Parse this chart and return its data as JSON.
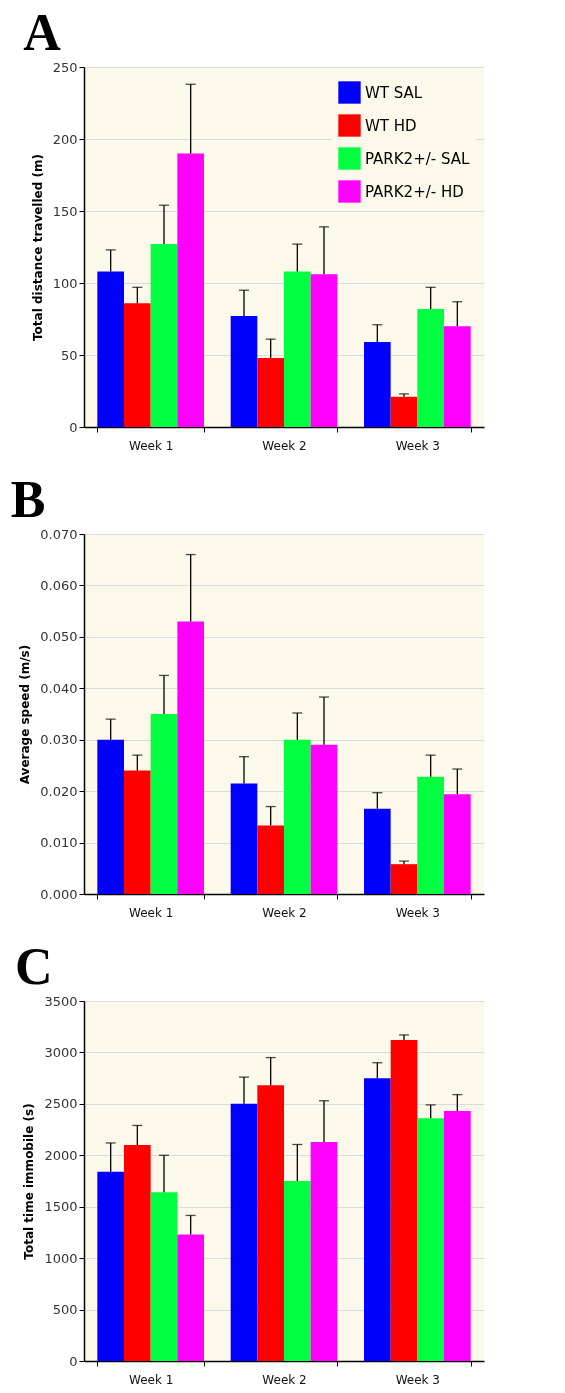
{
  "chart_data": [
    {
      "type": "bar",
      "title": "A",
      "ylabel": "Total distance travelled (m)",
      "categories": [
        "Week 1",
        "Week 2",
        "Week 3"
      ],
      "ylim": [
        0,
        250
      ],
      "yticks": [
        0,
        50,
        100,
        150,
        200,
        250
      ],
      "grid": "y",
      "legend": "top right",
      "series": [
        {
          "name": "WT SAL",
          "color": "#0000ff",
          "values": [
            108,
            77,
            59
          ],
          "errors": [
            [
              108,
              123
            ],
            [
              77,
              95
            ],
            [
              59,
              71
            ]
          ]
        },
        {
          "name": "WT HD",
          "color": "#ff0000",
          "values": [
            86,
            48,
            21
          ],
          "errors": [
            [
              86,
              97
            ],
            [
              48,
              61
            ],
            [
              21,
              23
            ]
          ]
        },
        {
          "name": "PARK2+/- SAL",
          "color": "#00ff40",
          "values": [
            127,
            108,
            82
          ],
          "errors": [
            [
              127,
              154
            ],
            [
              108,
              127
            ],
            [
              82,
              97
            ]
          ]
        },
        {
          "name": "PARK2+/- HD",
          "color": "#ff00ff",
          "values": [
            190,
            106,
            70
          ],
          "errors": [
            [
              190,
              238
            ],
            [
              106,
              139
            ],
            [
              70,
              87
            ]
          ]
        }
      ]
    },
    {
      "type": "bar",
      "title": "B",
      "ylabel": "Average speed (m/s)",
      "categories": [
        "Week 1",
        "Week 2",
        "Week 3"
      ],
      "ylim": [
        0,
        0.07
      ],
      "yticks": [
        {
          "value": 0,
          "label": "0.000"
        },
        {
          "value": 0.01,
          "label": "0.010"
        },
        {
          "value": 0.02,
          "label": "0.020"
        },
        {
          "value": 0.03,
          "label": "0.030"
        },
        {
          "value": 0.04,
          "label": "0.040"
        },
        {
          "value": 0.05,
          "label": "0.050"
        },
        {
          "value": 0.06,
          "label": "0.060"
        },
        {
          "value": 0.07,
          "label": "0.070"
        }
      ],
      "grid": "y",
      "series": [
        {
          "color": "#0000ff",
          "values": [
            0.03,
            0.0215,
            0.0166
          ],
          "errors": [
            [
              0.03,
              0.034
            ],
            [
              0.0215,
              0.0267
            ],
            [
              0.0166,
              0.0197
            ]
          ]
        },
        {
          "color": "#ff0000",
          "values": [
            0.024,
            0.0133,
            0.0058
          ],
          "errors": [
            [
              0.024,
              0.027
            ],
            [
              0.0133,
              0.017
            ],
            [
              0.0058,
              0.0064
            ]
          ]
        },
        {
          "color": "#00ff40",
          "values": [
            0.035,
            0.03,
            0.0228
          ],
          "errors": [
            [
              0.035,
              0.0425
            ],
            [
              0.03,
              0.0352
            ],
            [
              0.0228,
              0.027
            ]
          ]
        },
        {
          "color": "#ff00ff",
          "values": [
            0.053,
            0.029,
            0.0194
          ],
          "errors": [
            [
              0.053,
              0.066
            ],
            [
              0.029,
              0.0383
            ],
            [
              0.0194,
              0.0243
            ]
          ]
        }
      ]
    },
    {
      "type": "bar",
      "title": "C",
      "ylabel": "Total time immobile (s)",
      "categories": [
        "Week 1",
        "Week 2",
        "Week 3"
      ],
      "ylim": [
        0,
        3500
      ],
      "yticks": [
        0,
        500,
        1000,
        1500,
        2000,
        2500,
        3000,
        3500
      ],
      "grid": "y",
      "series": [
        {
          "color": "#0000ff",
          "values": [
            1840,
            2500,
            2750
          ],
          "errors": [
            [
              1840,
              2120
            ],
            [
              2500,
              2760
            ],
            [
              2750,
              2900
            ]
          ]
        },
        {
          "color": "#ff0000",
          "values": [
            2100,
            2680,
            3120
          ],
          "errors": [
            [
              2100,
              2290
            ],
            [
              2680,
              2950
            ],
            [
              3120,
              3170
            ]
          ]
        },
        {
          "color": "#00ff40",
          "values": [
            1640,
            1750,
            2360
          ],
          "errors": [
            [
              1640,
              2000
            ],
            [
              1750,
              2105
            ],
            [
              2360,
              2490
            ]
          ]
        },
        {
          "color": "#ff00ff",
          "values": [
            1230,
            2130,
            2430
          ],
          "errors": [
            [
              1230,
              1415
            ],
            [
              2130,
              2530
            ],
            [
              2430,
              2590
            ]
          ]
        }
      ]
    }
  ]
}
